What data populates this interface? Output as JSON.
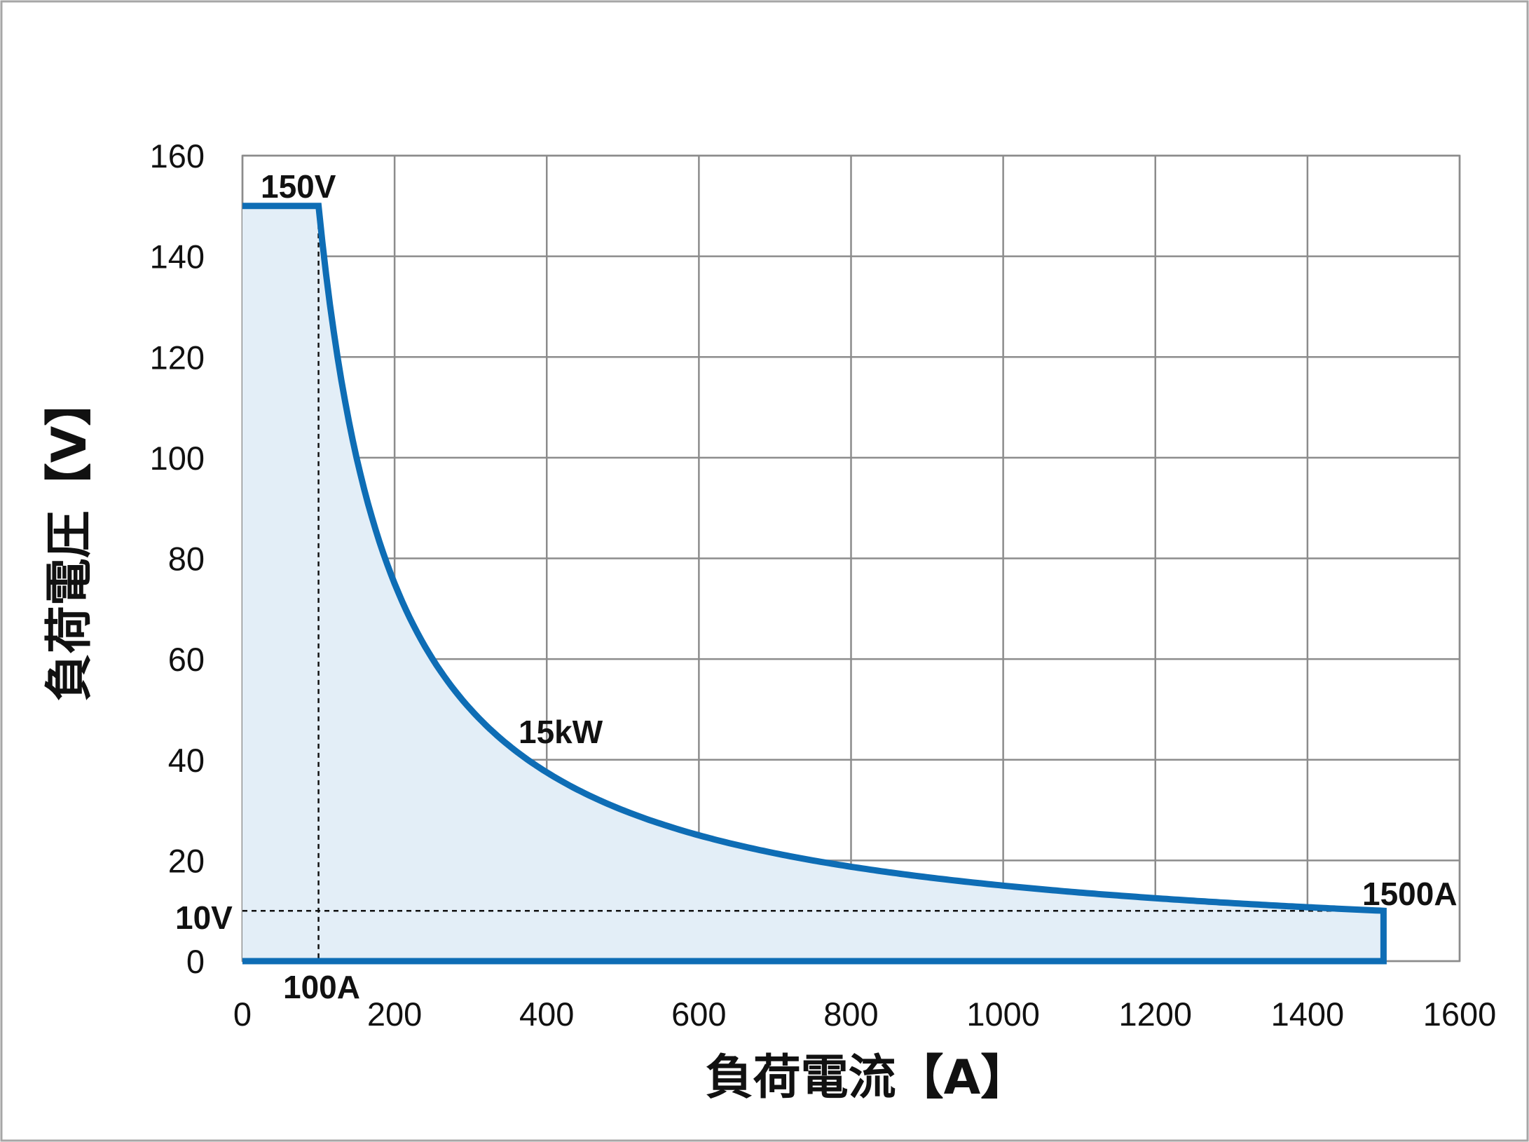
{
  "chart_data": {
    "type": "area",
    "xlabel": "負荷電流【A】",
    "ylabel": "負荷電圧【V】",
    "xlim": [
      0,
      1600
    ],
    "ylim": [
      0,
      160
    ],
    "x_ticks": [
      "0",
      "200",
      "400",
      "600",
      "800",
      "1000",
      "1200",
      "1400",
      "1600"
    ],
    "y_ticks": [
      "0",
      "20",
      "40",
      "60",
      "80",
      "100",
      "120",
      "140",
      "160"
    ],
    "grid": true,
    "boundary": {
      "max_voltage": 150,
      "max_current": 1500,
      "power_limit_kw": 15,
      "x": [
        0,
        100,
        125,
        150,
        175,
        200,
        250,
        300,
        350,
        400,
        500,
        600,
        700,
        800,
        1000,
        1200,
        1400,
        1500,
        1500,
        0
      ],
      "y": [
        150,
        150,
        120,
        100,
        85.7,
        75,
        60,
        50,
        42.9,
        37.5,
        30,
        25,
        21.4,
        18.8,
        15,
        12.5,
        10.7,
        10,
        0,
        0
      ]
    },
    "reference_lines": [
      {
        "x": 100,
        "y_from": 0,
        "y_to": 150,
        "style": "dashed"
      },
      {
        "y": 10,
        "x_from": 0,
        "x_to": 1500,
        "style": "dashed"
      }
    ],
    "annotations": {
      "v150": "150V",
      "kw15": "15kW",
      "a1500": "1500A",
      "v10": "10V",
      "a100": "100A"
    },
    "colors": {
      "line": "#0E6DB5",
      "fill": "#E3EEF7",
      "grid": "#8C8C8C",
      "frame": "#A6A6A6"
    }
  }
}
